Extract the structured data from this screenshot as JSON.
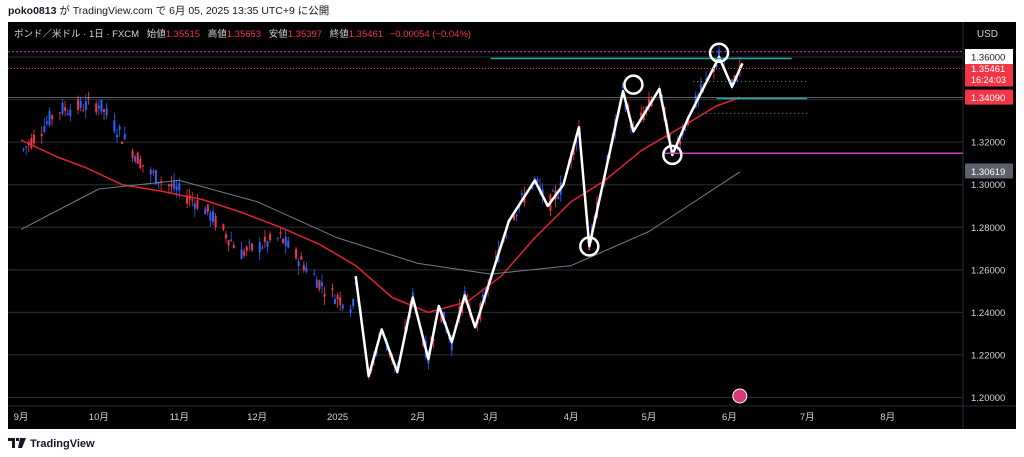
{
  "header": {
    "user": "poko0813",
    "text": " が TradingView.com で 6月 05, 2025 13:35 UTC+9 に公開"
  },
  "legend": {
    "symbol": "ポンド／米ドル · 1日 · FXCM",
    "open_label": "始値",
    "open": "1.35515",
    "high_label": "高値",
    "high": "1.35653",
    "low_label": "安値",
    "low": "1.35397",
    "close_label": "終値",
    "close": "1.35461",
    "change": "−0.00054 (−0.04%)"
  },
  "currency": "USD",
  "footer": {
    "brand": "TradingView"
  },
  "colors": {
    "background": "#000000",
    "up": "#2962ff",
    "down": "#f23645",
    "ma_red": "#e0232e",
    "ma_gray": "#787b86",
    "drawing": "#ffffff",
    "magenta": "#c040c0",
    "teal": "#26a69a"
  },
  "chart_data": {
    "type": "line",
    "title": "ポンド／米ドル · 1日 · FXCM",
    "ylim": [
      1.196,
      1.368
    ],
    "yticks": [
      "1.36000",
      "1.34000",
      "1.32000",
      "1.30000",
      "1.28000",
      "1.26000",
      "1.24000",
      "1.22000",
      "1.20000"
    ],
    "xticks": [
      "9月",
      "10月",
      "11月",
      "12月",
      "2025",
      "2月",
      "3月",
      "4月",
      "5月",
      "6月",
      "7月",
      "8月"
    ],
    "price_labels": [
      {
        "value": "1.35461",
        "sub": "16:24:03",
        "color": "#f23645"
      },
      {
        "value": "1.34090",
        "color": "#f23645"
      },
      {
        "value": "1.30619",
        "color": "#5d606b"
      },
      {
        "value": "1.36000",
        "color": "#5d606b"
      }
    ],
    "series": [
      {
        "type": "line",
        "x": [
          "2024-09-01",
          "2024-09-15",
          "2024-09-26",
          "2024-10-10",
          "2024-10-25",
          "2024-11-10",
          "2024-11-25",
          "2024-12-10",
          "2024-12-25",
          "2025-01-08",
          "2025-01-22",
          "2025-02-05",
          "2025-02-20",
          "2025-03-05",
          "2025-03-18",
          "2025-04-01",
          "2025-04-14",
          "2025-04-28",
          "2025-05-12",
          "2025-05-27",
          "2025-06-05"
        ],
        "values": [
          1.321,
          1.313,
          1.308,
          1.3,
          1.297,
          1.293,
          1.287,
          1.28,
          1.272,
          1.262,
          1.247,
          1.24,
          1.245,
          1.257,
          1.275,
          1.292,
          1.302,
          1.316,
          1.326,
          1.337,
          1.341
        ]
      },
      {
        "type": "line",
        "x": [
          "2024-09-01",
          "2024-10-01",
          "2024-11-01",
          "2024-12-01",
          "2025-01-01",
          "2025-02-01",
          "2025-03-01",
          "2025-04-01",
          "2025-05-01",
          "2025-06-05"
        ],
        "values": [
          1.279,
          1.298,
          1.302,
          1.292,
          1.275,
          1.263,
          1.258,
          1.262,
          1.278,
          1.306
        ]
      },
      {
        "type": "line",
        "x": [
          "2025-01-08",
          "2025-01-13",
          "2025-01-18",
          "2025-01-24",
          "2025-01-30",
          "2025-02-05",
          "2025-02-09",
          "2025-02-14",
          "2025-02-19",
          "2025-02-23",
          "2025-02-28",
          "2025-03-08",
          "2025-03-18",
          "2025-03-23",
          "2025-03-29",
          "2025-04-04",
          "2025-04-08",
          "2025-04-21",
          "2025-04-25",
          "2025-05-05",
          "2025-05-10",
          "2025-05-16",
          "2025-05-28",
          "2025-06-02",
          "2025-06-06"
        ],
        "values": [
          1.257,
          1.21,
          1.232,
          1.212,
          1.247,
          1.218,
          1.243,
          1.226,
          1.248,
          1.233,
          1.252,
          1.283,
          1.302,
          1.29,
          1.3,
          1.327,
          1.271,
          1.344,
          1.325,
          1.345,
          1.314,
          1.331,
          1.36,
          1.346,
          1.357
        ]
      }
    ],
    "markers": [
      {
        "x": "2025-04-08",
        "y": 1.271
      },
      {
        "x": "2025-04-25",
        "y": 1.347
      },
      {
        "x": "2025-05-10",
        "y": 1.314
      },
      {
        "x": "2025-05-28",
        "y": 1.362
      }
    ],
    "grid": true,
    "legend_position": "top-left"
  }
}
